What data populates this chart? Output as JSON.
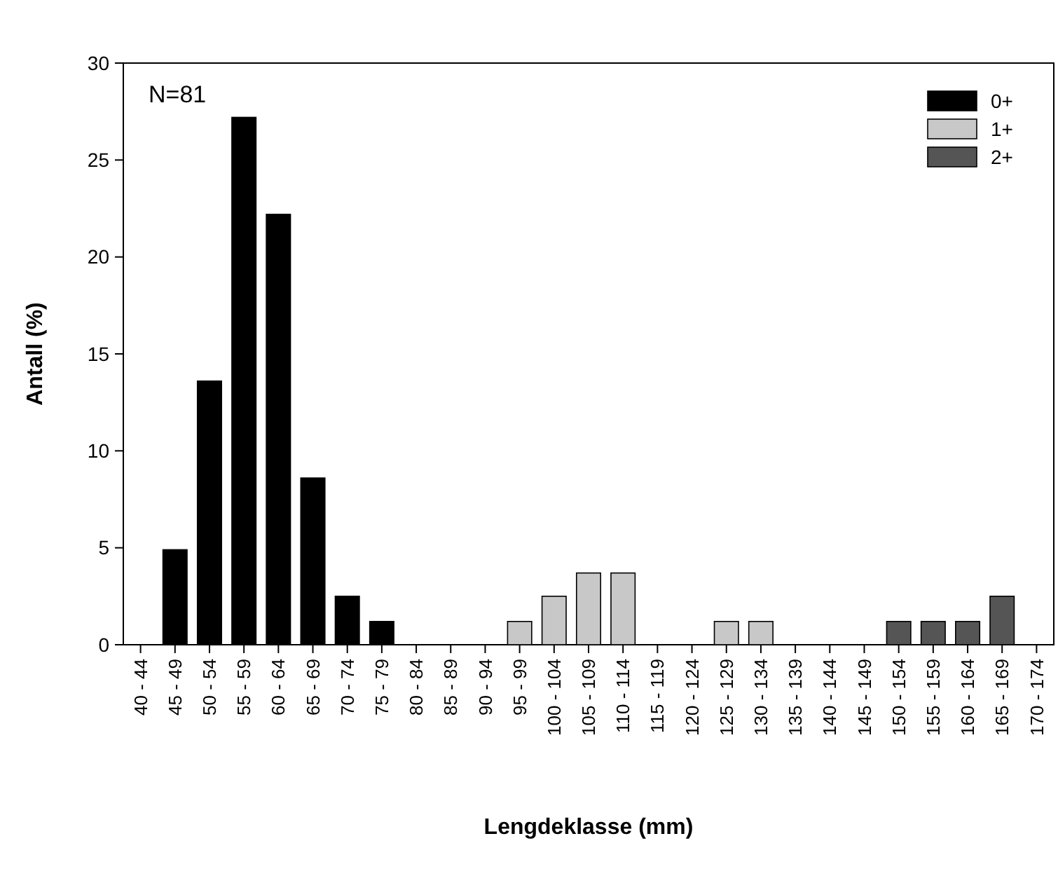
{
  "chart_data": {
    "type": "bar",
    "xlabel": "Lengdeklasse (mm)",
    "ylabel": "Antall (%)",
    "annotations": [
      "N=81"
    ],
    "categories": [
      "40 - 44",
      "45 - 49",
      "50 - 54",
      "55 - 59",
      "60 - 64",
      "65 - 69",
      "70 - 74",
      "75 - 79",
      "80 - 84",
      "85 - 89",
      "90 - 94",
      "95 - 99",
      "100 - 104",
      "105 - 109",
      "110 - 114",
      "115 - 119",
      "120 - 124",
      "125 - 129",
      "130 - 134",
      "135 - 139",
      "140 - 144",
      "145 - 149",
      "150 - 154",
      "155 - 159",
      "160 - 164",
      "165 - 169",
      "170 - 174"
    ],
    "series": [
      {
        "name": "0+",
        "color": "#000000",
        "values": [
          null,
          4.9,
          13.6,
          27.2,
          22.2,
          8.6,
          2.5,
          1.2,
          null,
          null,
          null,
          null,
          null,
          null,
          null,
          null,
          null,
          null,
          null,
          null,
          null,
          null,
          null,
          null,
          null,
          null,
          null
        ]
      },
      {
        "name": "1+",
        "color": "#c8c8c8",
        "values": [
          null,
          null,
          null,
          null,
          null,
          null,
          null,
          null,
          null,
          null,
          null,
          1.2,
          2.5,
          3.7,
          3.7,
          null,
          null,
          1.2,
          1.2,
          null,
          null,
          null,
          null,
          null,
          null,
          null,
          null
        ]
      },
      {
        "name": "2+",
        "color": "#555555",
        "values": [
          null,
          null,
          null,
          null,
          null,
          null,
          null,
          null,
          null,
          null,
          null,
          null,
          null,
          null,
          null,
          null,
          null,
          null,
          null,
          null,
          null,
          null,
          1.2,
          1.2,
          1.2,
          2.5,
          null
        ]
      }
    ],
    "ylim": [
      0,
      30
    ],
    "yticks": [
      0,
      5,
      10,
      15,
      20,
      25,
      30
    ],
    "legend": "top right"
  }
}
